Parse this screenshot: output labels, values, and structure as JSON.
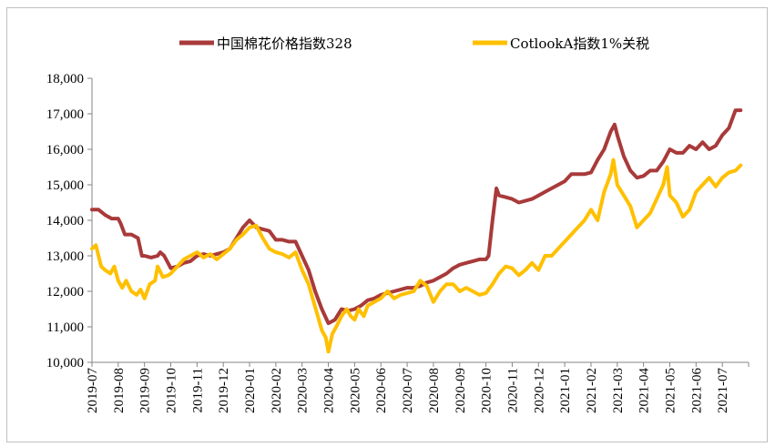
{
  "chart_data": {
    "type": "line",
    "title": "",
    "xlabel": "",
    "ylabel": "",
    "ylim": [
      10000,
      18000
    ],
    "y_ticks": [
      10000,
      11000,
      12000,
      13000,
      14000,
      15000,
      16000,
      17000,
      18000
    ],
    "y_tick_labels": [
      "10,000",
      "11,000",
      "12,000",
      "13,000",
      "14,000",
      "15,000",
      "16,000",
      "17,000",
      "18,000"
    ],
    "x_tick_labels": [
      "2019-07",
      "2019-08",
      "2019-09",
      "2019-10",
      "2019-11",
      "2019-12",
      "2020-01",
      "2020-02",
      "2020-03",
      "2020-04",
      "2020-05",
      "2020-06",
      "2020-07",
      "2020-08",
      "2020-09",
      "2020-10",
      "2020-11",
      "2020-12",
      "2021-01",
      "2021-02",
      "2021-03",
      "2021-04",
      "2021-05",
      "2021-06",
      "2021-07"
    ],
    "x_range": [
      0,
      25
    ],
    "grid": false,
    "legend_position": "top",
    "series": [
      {
        "name": "中国棉花价格指数328",
        "color": "#a93a3a",
        "points": [
          [
            0,
            14300
          ],
          [
            0.25,
            14300
          ],
          [
            0.5,
            14150
          ],
          [
            0.75,
            14050
          ],
          [
            1.0,
            14050
          ],
          [
            1.1,
            13900
          ],
          [
            1.25,
            13600
          ],
          [
            1.5,
            13600
          ],
          [
            1.75,
            13500
          ],
          [
            1.9,
            13000
          ],
          [
            2.0,
            13000
          ],
          [
            2.25,
            12950
          ],
          [
            2.5,
            13000
          ],
          [
            2.6,
            13100
          ],
          [
            2.75,
            13000
          ],
          [
            3.0,
            12650
          ],
          [
            3.25,
            12700
          ],
          [
            3.5,
            12800
          ],
          [
            3.75,
            12850
          ],
          [
            4.0,
            13000
          ],
          [
            4.25,
            13050
          ],
          [
            4.5,
            13000
          ],
          [
            4.75,
            13050
          ],
          [
            5.0,
            13100
          ],
          [
            5.25,
            13200
          ],
          [
            5.5,
            13500
          ],
          [
            5.75,
            13800
          ],
          [
            6.0,
            14000
          ],
          [
            6.25,
            13800
          ],
          [
            6.5,
            13750
          ],
          [
            6.75,
            13700
          ],
          [
            7.0,
            13450
          ],
          [
            7.25,
            13450
          ],
          [
            7.5,
            13400
          ],
          [
            7.75,
            13400
          ],
          [
            8.0,
            13000
          ],
          [
            8.25,
            12600
          ],
          [
            8.5,
            12000
          ],
          [
            8.75,
            11500
          ],
          [
            9.0,
            11100
          ],
          [
            9.25,
            11200
          ],
          [
            9.5,
            11500
          ],
          [
            9.75,
            11450
          ],
          [
            10.0,
            11500
          ],
          [
            10.25,
            11600
          ],
          [
            10.5,
            11750
          ],
          [
            10.75,
            11800
          ],
          [
            11.0,
            11900
          ],
          [
            11.25,
            11950
          ],
          [
            11.5,
            12000
          ],
          [
            11.75,
            12050
          ],
          [
            12.0,
            12100
          ],
          [
            12.25,
            12100
          ],
          [
            12.5,
            12150
          ],
          [
            12.75,
            12250
          ],
          [
            13.0,
            12300
          ],
          [
            13.25,
            12400
          ],
          [
            13.5,
            12500
          ],
          [
            13.75,
            12650
          ],
          [
            14.0,
            12750
          ],
          [
            14.25,
            12800
          ],
          [
            14.5,
            12850
          ],
          [
            14.75,
            12900
          ],
          [
            15.0,
            12900
          ],
          [
            15.1,
            13000
          ],
          [
            15.25,
            14000
          ],
          [
            15.4,
            14900
          ],
          [
            15.5,
            14700
          ],
          [
            15.75,
            14650
          ],
          [
            16.0,
            14600
          ],
          [
            16.25,
            14500
          ],
          [
            16.5,
            14550
          ],
          [
            16.75,
            14600
          ],
          [
            17.0,
            14700
          ],
          [
            17.25,
            14800
          ],
          [
            17.5,
            14900
          ],
          [
            17.75,
            15000
          ],
          [
            18.0,
            15100
          ],
          [
            18.25,
            15300
          ],
          [
            18.5,
            15300
          ],
          [
            18.75,
            15300
          ],
          [
            19.0,
            15350
          ],
          [
            19.25,
            15700
          ],
          [
            19.5,
            16000
          ],
          [
            19.75,
            16500
          ],
          [
            19.9,
            16700
          ],
          [
            20.0,
            16400
          ],
          [
            20.25,
            15800
          ],
          [
            20.5,
            15400
          ],
          [
            20.75,
            15200
          ],
          [
            21.0,
            15250
          ],
          [
            21.25,
            15400
          ],
          [
            21.5,
            15400
          ],
          [
            21.75,
            15650
          ],
          [
            22.0,
            16000
          ],
          [
            22.25,
            15900
          ],
          [
            22.5,
            15900
          ],
          [
            22.75,
            16100
          ],
          [
            23.0,
            16000
          ],
          [
            23.25,
            16200
          ],
          [
            23.5,
            16000
          ],
          [
            23.75,
            16100
          ],
          [
            24.0,
            16400
          ],
          [
            24.25,
            16600
          ],
          [
            24.5,
            17100
          ],
          [
            24.7,
            17100
          ]
        ]
      },
      {
        "name": "CotlookA指数1%关税",
        "color": "#ffc000",
        "points": [
          [
            0,
            13200
          ],
          [
            0.15,
            13300
          ],
          [
            0.35,
            12700
          ],
          [
            0.5,
            12600
          ],
          [
            0.7,
            12500
          ],
          [
            0.85,
            12700
          ],
          [
            1.0,
            12300
          ],
          [
            1.15,
            12100
          ],
          [
            1.3,
            12300
          ],
          [
            1.5,
            12000
          ],
          [
            1.7,
            11900
          ],
          [
            1.85,
            12050
          ],
          [
            2.0,
            11800
          ],
          [
            2.2,
            12200
          ],
          [
            2.4,
            12300
          ],
          [
            2.5,
            12700
          ],
          [
            2.7,
            12400
          ],
          [
            2.9,
            12450
          ],
          [
            3.0,
            12500
          ],
          [
            3.25,
            12700
          ],
          [
            3.5,
            12900
          ],
          [
            3.75,
            13000
          ],
          [
            4.0,
            13100
          ],
          [
            4.25,
            12950
          ],
          [
            4.5,
            13050
          ],
          [
            4.75,
            12900
          ],
          [
            5.0,
            13050
          ],
          [
            5.25,
            13200
          ],
          [
            5.5,
            13450
          ],
          [
            5.75,
            13600
          ],
          [
            6.0,
            13800
          ],
          [
            6.25,
            13850
          ],
          [
            6.5,
            13500
          ],
          [
            6.75,
            13200
          ],
          [
            7.0,
            13100
          ],
          [
            7.25,
            13050
          ],
          [
            7.5,
            12950
          ],
          [
            7.75,
            13100
          ],
          [
            8.0,
            12600
          ],
          [
            8.25,
            12200
          ],
          [
            8.4,
            11800
          ],
          [
            8.6,
            11300
          ],
          [
            8.75,
            10900
          ],
          [
            8.9,
            10700
          ],
          [
            9.0,
            10300
          ],
          [
            9.15,
            10800
          ],
          [
            9.3,
            11000
          ],
          [
            9.5,
            11300
          ],
          [
            9.7,
            11500
          ],
          [
            9.85,
            11300
          ],
          [
            10.0,
            11200
          ],
          [
            10.15,
            11500
          ],
          [
            10.35,
            11300
          ],
          [
            10.5,
            11600
          ],
          [
            10.75,
            11700
          ],
          [
            11.0,
            11800
          ],
          [
            11.25,
            12000
          ],
          [
            11.5,
            11800
          ],
          [
            11.75,
            11900
          ],
          [
            12.0,
            11950
          ],
          [
            12.25,
            12000
          ],
          [
            12.5,
            12300
          ],
          [
            12.75,
            12150
          ],
          [
            13.0,
            11700
          ],
          [
            13.25,
            12000
          ],
          [
            13.5,
            12200
          ],
          [
            13.75,
            12200
          ],
          [
            14.0,
            12000
          ],
          [
            14.25,
            12100
          ],
          [
            14.5,
            12000
          ],
          [
            14.75,
            11900
          ],
          [
            15.0,
            11950
          ],
          [
            15.25,
            12200
          ],
          [
            15.5,
            12500
          ],
          [
            15.75,
            12700
          ],
          [
            16.0,
            12650
          ],
          [
            16.25,
            12450
          ],
          [
            16.5,
            12600
          ],
          [
            16.75,
            12800
          ],
          [
            17.0,
            12600
          ],
          [
            17.25,
            13000
          ],
          [
            17.5,
            13000
          ],
          [
            17.75,
            13200
          ],
          [
            18.0,
            13400
          ],
          [
            18.25,
            13600
          ],
          [
            18.5,
            13800
          ],
          [
            18.75,
            14000
          ],
          [
            19.0,
            14300
          ],
          [
            19.25,
            14000
          ],
          [
            19.5,
            14800
          ],
          [
            19.75,
            15300
          ],
          [
            19.85,
            15700
          ],
          [
            20.0,
            15000
          ],
          [
            20.25,
            14700
          ],
          [
            20.5,
            14400
          ],
          [
            20.75,
            13800
          ],
          [
            21.0,
            14000
          ],
          [
            21.25,
            14200
          ],
          [
            21.5,
            14600
          ],
          [
            21.75,
            15000
          ],
          [
            21.9,
            15500
          ],
          [
            22.0,
            14700
          ],
          [
            22.25,
            14500
          ],
          [
            22.5,
            14100
          ],
          [
            22.75,
            14300
          ],
          [
            23.0,
            14800
          ],
          [
            23.25,
            15000
          ],
          [
            23.5,
            15200
          ],
          [
            23.75,
            14950
          ],
          [
            24.0,
            15200
          ],
          [
            24.25,
            15350
          ],
          [
            24.5,
            15400
          ],
          [
            24.7,
            15550
          ]
        ]
      }
    ]
  }
}
